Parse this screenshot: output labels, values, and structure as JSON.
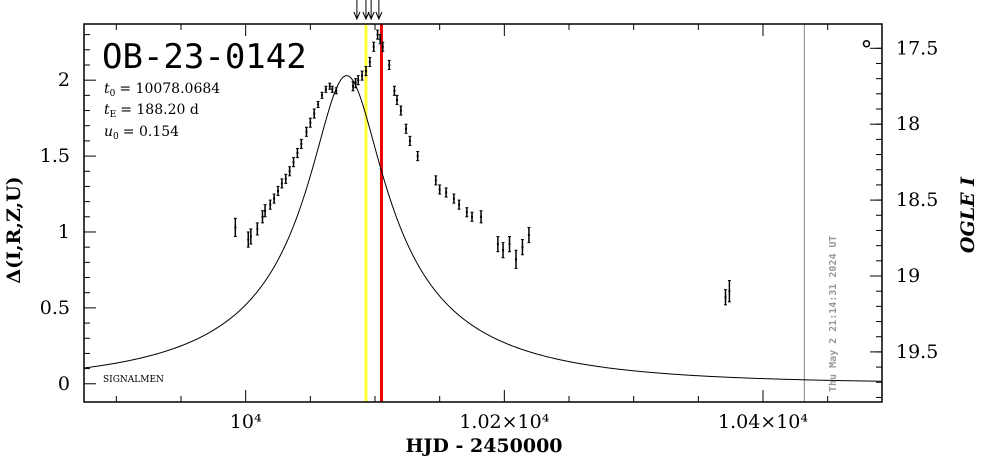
{
  "chart_data": {
    "type": "scatter",
    "title": "OB-23-0142",
    "params": {
      "t0_value": "= 10078.0684",
      "tE_value": "= 188.20 d",
      "u0_value": "= 0.154"
    },
    "xlabel": "HJD - 2450000",
    "ylabel_left": "Δ(I,R,Z,U)",
    "ylabel_right": "OGLE I",
    "footer_text": "SIGNALMEN",
    "timestamp": "Thu May  2 21:14:31 2024 UT",
    "xlim": [
      9875,
      10492
    ],
    "ylim_left": [
      -0.12,
      2.37
    ],
    "x_tick_labels": [
      "10⁴",
      "1.02×10⁴",
      "1.04×10⁴"
    ],
    "x_ticks": [
      10000,
      10200,
      10400
    ],
    "left_tick_labels": [
      "0",
      "0.5",
      "1",
      "1.5",
      "2"
    ],
    "left_ticks": [
      0,
      0.5,
      1,
      1.5,
      2
    ],
    "right_tick_labels": [
      "17.5",
      "18",
      "18.5",
      "19",
      "19.5"
    ],
    "right_ticks_delta": [
      2.21,
      1.71,
      1.21,
      0.71,
      0.21
    ],
    "vertical_lines": [
      {
        "x": 10093,
        "color": "#ffff33"
      },
      {
        "x": 10105,
        "color": "#ee0000"
      },
      {
        "x": 10432,
        "color": "#999999"
      }
    ],
    "arrows_x": [
      10086,
      10093,
      10097,
      10103
    ],
    "model": {
      "t0": 10078.0684,
      "tE": 188.2,
      "u0": 0.154,
      "amp_max": 2.03,
      "baseline": 0.0
    },
    "series": [
      {
        "points": [
          [
            9992,
            1.03,
            0.06
          ],
          [
            10002,
            0.95,
            0.05
          ],
          [
            10004,
            0.97,
            0.05
          ],
          [
            10009,
            1.02,
            0.04
          ],
          [
            10013,
            1.1,
            0.04
          ],
          [
            10015,
            1.14,
            0.04
          ],
          [
            10019,
            1.18,
            0.03
          ],
          [
            10022,
            1.22,
            0.03
          ],
          [
            10025,
            1.27,
            0.03
          ],
          [
            10028,
            1.32,
            0.03
          ],
          [
            10031,
            1.35,
            0.03
          ],
          [
            10034,
            1.4,
            0.03
          ],
          [
            10037,
            1.46,
            0.03
          ],
          [
            10040,
            1.52,
            0.03
          ],
          [
            10043,
            1.58,
            0.03
          ],
          [
            10047,
            1.66,
            0.03
          ],
          [
            10050,
            1.72,
            0.03
          ],
          [
            10053,
            1.78,
            0.03
          ],
          [
            10056,
            1.84,
            0.02
          ],
          [
            10059,
            1.9,
            0.02
          ],
          [
            10062,
            1.94,
            0.02
          ],
          [
            10065,
            1.96,
            0.02
          ],
          [
            10067,
            1.94,
            0.02
          ],
          [
            10070,
            1.93,
            0.02
          ],
          [
            10083,
            1.96,
            0.03
          ],
          [
            10085,
            1.98,
            0.03
          ],
          [
            10087,
            2.0,
            0.03
          ],
          [
            10090,
            2.03,
            0.03
          ],
          [
            10093,
            2.06,
            0.03
          ],
          [
            10096,
            2.12,
            0.03
          ],
          [
            10099,
            2.22,
            0.03
          ],
          [
            10102,
            2.3,
            0.03
          ],
          [
            10104,
            2.27,
            0.03
          ],
          [
            10106,
            2.22,
            0.03
          ],
          [
            10111,
            2.1,
            0.03
          ],
          [
            10115,
            1.93,
            0.03
          ],
          [
            10117,
            1.87,
            0.03
          ],
          [
            10120,
            1.8,
            0.03
          ],
          [
            10124,
            1.68,
            0.03
          ],
          [
            10127,
            1.6,
            0.03
          ],
          [
            10133,
            1.5,
            0.03
          ],
          [
            10147,
            1.34,
            0.03
          ],
          [
            10150,
            1.28,
            0.03
          ],
          [
            10155,
            1.26,
            0.03
          ],
          [
            10161,
            1.22,
            0.03
          ],
          [
            10165,
            1.18,
            0.03
          ],
          [
            10171,
            1.13,
            0.03
          ],
          [
            10175,
            1.1,
            0.03
          ],
          [
            10182,
            1.1,
            0.04
          ],
          [
            10195,
            0.92,
            0.05
          ],
          [
            10199,
            0.88,
            0.05
          ],
          [
            10204,
            0.92,
            0.05
          ],
          [
            10209,
            0.82,
            0.06
          ],
          [
            10214,
            0.9,
            0.05
          ],
          [
            10219,
            0.98,
            0.05
          ],
          [
            10371,
            0.57,
            0.05
          ],
          [
            10374,
            0.61,
            0.07
          ]
        ]
      }
    ],
    "outlier_marker": {
      "x": 10480,
      "y": 2.24
    }
  }
}
